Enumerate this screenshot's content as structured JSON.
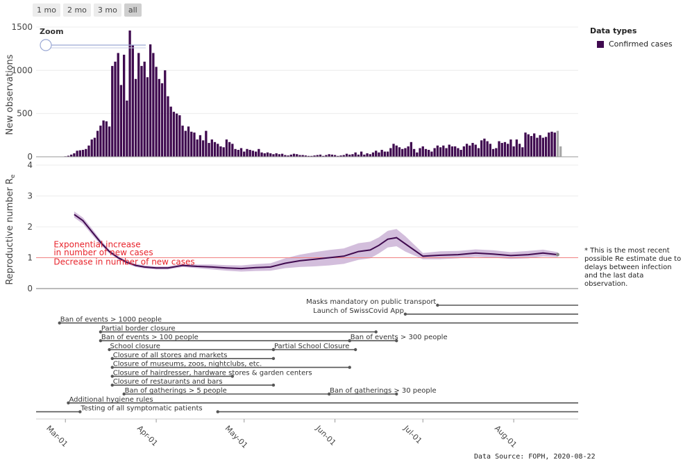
{
  "zoom_buttons": [
    {
      "label": "1 mo",
      "active": false
    },
    {
      "label": "2 mo",
      "active": false
    },
    {
      "label": "3 mo",
      "active": false
    },
    {
      "label": "all",
      "active": true
    }
  ],
  "zoom_label": "Zoom",
  "legend": {
    "title": "Data types",
    "items": [
      {
        "label": "Confirmed cases",
        "color": "#3f0a4f"
      }
    ]
  },
  "note": "* This is the most recent possible Re estimate due to delays between infection and the last data observation.",
  "source": "Data Source: FOPH, 2020-08-22",
  "colors": {
    "bar": "#3f0a4f",
    "bar_recent": "#a8a8a8",
    "line": "#3f0a4f",
    "band": "#c4a8d0",
    "threshold": "#f08080",
    "event": "#555555"
  },
  "chart_data": [
    {
      "type": "bar",
      "ylabel": "New observations",
      "ylim": [
        0,
        1500
      ],
      "yticks": [
        0,
        500,
        1000,
        1500
      ],
      "x_start": "2020-02-24",
      "values": [
        0,
        0,
        0,
        1,
        2,
        4,
        6,
        12,
        25,
        40,
        70,
        75,
        80,
        90,
        130,
        200,
        220,
        300,
        360,
        420,
        410,
        350,
        1050,
        1100,
        1200,
        830,
        1180,
        650,
        1460,
        1290,
        900,
        1200,
        1050,
        1100,
        920,
        1300,
        1200,
        1040,
        900,
        850,
        1000,
        700,
        580,
        520,
        500,
        480,
        360,
        300,
        350,
        290,
        280,
        200,
        250,
        190,
        300,
        160,
        200,
        170,
        150,
        120,
        110,
        200,
        170,
        150,
        90,
        80,
        100,
        60,
        90,
        80,
        70,
        60,
        90,
        50,
        40,
        50,
        40,
        30,
        40,
        30,
        35,
        20,
        15,
        25,
        35,
        30,
        20,
        20,
        15,
        10,
        10,
        15,
        20,
        25,
        10,
        20,
        30,
        25,
        20,
        10,
        15,
        20,
        35,
        25,
        30,
        50,
        25,
        60,
        25,
        40,
        30,
        50,
        70,
        50,
        80,
        60,
        60,
        100,
        150,
        130,
        110,
        90,
        100,
        120,
        170,
        90,
        50,
        100,
        120,
        90,
        80,
        60,
        100,
        130,
        110,
        130,
        100,
        140,
        120,
        120,
        100,
        80,
        120,
        150,
        130,
        160,
        140,
        100,
        190,
        210,
        180,
        150,
        90,
        100,
        180,
        160,
        170,
        150,
        200,
        120,
        200,
        150,
        110,
        280,
        260,
        240,
        270,
        220,
        250,
        220,
        230,
        280,
        290,
        280,
        300,
        120
      ],
      "recent_count": 2
    },
    {
      "type": "line",
      "ylabel": "Reproductive number R",
      "ylabel_sub": "e",
      "ylim": [
        0,
        4
      ],
      "yticks": [
        0,
        1,
        2,
        3,
        4
      ],
      "threshold": 1,
      "annotations": [
        {
          "text": "Exponential increase",
          "x": "2020-02-26",
          "y": 1.43
        },
        {
          "text": "in number of new cases",
          "x": "2020-02-26",
          "y": 1.17
        },
        {
          "text": "Decrease in number of new cases",
          "x": "2020-02-26",
          "y": 0.87
        }
      ],
      "x": [
        "2020-03-04",
        "2020-03-07",
        "2020-03-10",
        "2020-03-13",
        "2020-03-16",
        "2020-03-19",
        "2020-03-22",
        "2020-03-25",
        "2020-03-28",
        "2020-04-01",
        "2020-04-05",
        "2020-04-10",
        "2020-04-15",
        "2020-04-20",
        "2020-04-25",
        "2020-04-30",
        "2020-05-05",
        "2020-05-10",
        "2020-05-15",
        "2020-05-20",
        "2020-05-25",
        "2020-05-30",
        "2020-06-04",
        "2020-06-09",
        "2020-06-13",
        "2020-06-16",
        "2020-06-19",
        "2020-06-22",
        "2020-06-25",
        "2020-07-01",
        "2020-07-07",
        "2020-07-13",
        "2020-07-19",
        "2020-07-25",
        "2020-07-31",
        "2020-08-06",
        "2020-08-11",
        "2020-08-16"
      ],
      "y": [
        2.4,
        2.2,
        1.85,
        1.5,
        1.2,
        1.0,
        0.85,
        0.75,
        0.7,
        0.67,
        0.67,
        0.75,
        0.72,
        0.7,
        0.67,
        0.65,
        0.68,
        0.7,
        0.82,
        0.9,
        0.95,
        1.0,
        1.05,
        1.2,
        1.25,
        1.4,
        1.6,
        1.65,
        1.45,
        1.05,
        1.08,
        1.1,
        1.15,
        1.12,
        1.07,
        1.1,
        1.15,
        1.1
      ],
      "lower": [
        2.3,
        2.1,
        1.75,
        1.42,
        1.14,
        0.95,
        0.8,
        0.7,
        0.65,
        0.62,
        0.62,
        0.7,
        0.66,
        0.62,
        0.58,
        0.55,
        0.57,
        0.58,
        0.66,
        0.7,
        0.72,
        0.75,
        0.8,
        0.93,
        0.98,
        1.14,
        1.33,
        1.37,
        1.2,
        0.95,
        0.95,
        0.98,
        1.03,
        1.0,
        0.96,
        0.98,
        1.04,
        1.02
      ],
      "upper": [
        2.5,
        2.3,
        1.95,
        1.58,
        1.26,
        1.05,
        0.9,
        0.8,
        0.75,
        0.72,
        0.72,
        0.8,
        0.78,
        0.78,
        0.76,
        0.75,
        0.79,
        0.82,
        0.98,
        1.1,
        1.18,
        1.25,
        1.3,
        1.47,
        1.52,
        1.66,
        1.87,
        1.93,
        1.7,
        1.15,
        1.21,
        1.22,
        1.27,
        1.24,
        1.18,
        1.22,
        1.26,
        1.18
      ]
    },
    {
      "type": "timeline",
      "xticks": [
        "Mar-01",
        "Apr-01",
        "May-01",
        "Jun-01",
        "Jul-01",
        "Aug-01"
      ],
      "xtick_dates": [
        "2020-03-01",
        "2020-04-01",
        "2020-05-01",
        "2020-06-01",
        "2020-07-01",
        "2020-08-01"
      ],
      "events": [
        {
          "label": "Masks mandatory on public transport",
          "start": "2020-07-06",
          "end": null,
          "row": 0,
          "label_side": "left"
        },
        {
          "label": "Launch of SwissCovid App",
          "start": "2020-06-25",
          "end": null,
          "row": 1,
          "label_side": "left"
        },
        {
          "label": "Ban of events > 1000 people",
          "start": "2020-02-28",
          "end": null,
          "row": 2,
          "label_side": "right"
        },
        {
          "label": "Partial border closure",
          "start": "2020-03-13",
          "end": "2020-06-15",
          "row": 3,
          "label_side": "right"
        },
        {
          "label": "Ban of events > 100 people",
          "start": "2020-03-13",
          "end": "2020-06-06",
          "row": 4,
          "label_side": "right"
        },
        {
          "label": "Ban of events > 300 people",
          "start": "2020-06-06",
          "end": "2020-06-22",
          "row": 4,
          "label_side": "right"
        },
        {
          "label": "School closure",
          "start": "2020-03-16",
          "end": "2020-05-11",
          "row": 5,
          "label_side": "right"
        },
        {
          "label": "Partial School Closure",
          "start": "2020-05-11",
          "end": "2020-06-08",
          "row": 5,
          "label_side": "right"
        },
        {
          "label": "Closure of all stores and markets",
          "start": "2020-03-17",
          "end": "2020-05-11",
          "row": 6,
          "label_side": "right"
        },
        {
          "label": "Closure of museums, zoos, nightclubs, etc.",
          "start": "2020-03-17",
          "end": "2020-06-06",
          "row": 7,
          "label_side": "right"
        },
        {
          "label": "Closure of hairdresser, hardware stores & garden centers",
          "start": "2020-03-17",
          "end": "2020-04-27",
          "row": 8,
          "label_side": "right"
        },
        {
          "label": "Closure of restaurants and bars",
          "start": "2020-03-17",
          "end": "2020-05-11",
          "row": 9,
          "label_side": "right"
        },
        {
          "label": "Ban of gatherings > 5 people",
          "start": "2020-03-21",
          "end": "2020-05-30",
          "row": 10,
          "label_side": "right"
        },
        {
          "label": "Ban of gatherings > 30 people",
          "start": "2020-05-30",
          "end": "2020-06-22",
          "row": 10,
          "label_side": "right"
        },
        {
          "label": "Additional hygiene rules",
          "start": "2020-03-02",
          "end": null,
          "row": 11,
          "label_side": "right"
        },
        {
          "label": "Testing of all symptomatic patients",
          "start": "2020-03-06",
          "end": "2020-04-22",
          "row": 12,
          "label_side": "right",
          "pre_line": true
        }
      ]
    }
  ]
}
